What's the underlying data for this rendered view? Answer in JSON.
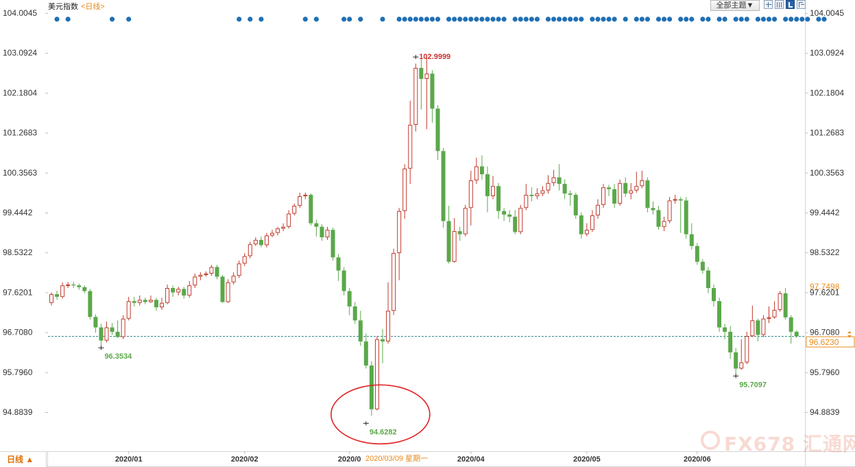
{
  "header": {
    "instrument": "美元指数",
    "period": "<日线>",
    "theme_button": "全部主题▼"
  },
  "toolbar_icons": [
    "grid-icon",
    "split-view-icon",
    "panel-toggle-icon",
    "export-icon"
  ],
  "period_tab": "日线 ▲",
  "cursor_date": "2020/03/09 星期一",
  "watermark": "FX678 汇通网",
  "colors": {
    "up": "#c0392b",
    "down": "#5aa84a",
    "marker_dot": "#1f6fb5",
    "current_line": "#2e8b8b",
    "annotation_orange": "#e88a1a",
    "highlight_circle": "#e02020"
  },
  "chart_data": {
    "type": "candlestick",
    "y_ticks": [
      "104.0045",
      "103.0924",
      "102.1804",
      "101.2683",
      "100.3563",
      "99.4442",
      "98.5322",
      "97.6201",
      "96.7080",
      "95.7960",
      "94.8839"
    ],
    "ylim": [
      94.45,
      104.0045
    ],
    "x_ticks": [
      {
        "label": "2020/01",
        "index": 14
      },
      {
        "label": "2020/02",
        "index": 35
      },
      {
        "label": "2020/0",
        "index": 54
      },
      {
        "label": "2020/04",
        "index": 76
      },
      {
        "label": "2020/05",
        "index": 97
      },
      {
        "label": "2020/06",
        "index": 117
      }
    ],
    "annotations": [
      {
        "label": "96.3534",
        "value": 96.3534,
        "index": 9,
        "color": "#5aa84a",
        "position": "below"
      },
      {
        "label": "102.9999",
        "value": 102.9999,
        "index": 66,
        "color": "#d03030",
        "position": "above"
      },
      {
        "label": "94.6282",
        "value": 94.6282,
        "index": 57,
        "color": "#5aa84a",
        "position": "below"
      },
      {
        "label": "95.7097",
        "value": 95.7097,
        "index": 124,
        "color": "#5aa84a",
        "position": "below"
      }
    ],
    "price_labels": [
      {
        "label": "97.7498",
        "value": 97.7498
      },
      {
        "label": "96.6230",
        "value": 96.623
      }
    ],
    "current_value": 96.623,
    "highlight_index": 57,
    "candles": [
      [
        97.38,
        97.58,
        97.32,
        97.62
      ],
      [
        97.58,
        97.52,
        97.45,
        97.66
      ],
      [
        97.52,
        97.78,
        97.48,
        97.85
      ],
      [
        97.78,
        97.8,
        97.72,
        97.86
      ],
      [
        97.8,
        97.78,
        97.72,
        97.86
      ],
      [
        97.78,
        97.74,
        97.68,
        97.82
      ],
      [
        97.74,
        97.65,
        97.6,
        97.78
      ],
      [
        97.65,
        97.06,
        97.0,
        97.7
      ],
      [
        97.06,
        96.82,
        96.7,
        97.12
      ],
      [
        96.82,
        96.52,
        96.35,
        96.9
      ],
      [
        96.52,
        96.82,
        96.48,
        96.95
      ],
      [
        96.82,
        96.72,
        96.65,
        96.92
      ],
      [
        96.72,
        96.6,
        96.58,
        96.98
      ],
      [
        96.6,
        97.02,
        96.55,
        97.1
      ],
      [
        97.02,
        97.42,
        96.98,
        97.52
      ],
      [
        97.42,
        97.38,
        97.3,
        97.52
      ],
      [
        97.38,
        97.45,
        97.32,
        97.55
      ],
      [
        97.45,
        97.4,
        97.35,
        97.5
      ],
      [
        97.4,
        97.45,
        97.38,
        97.55
      ],
      [
        97.45,
        97.28,
        97.2,
        97.5
      ],
      [
        97.28,
        97.38,
        97.22,
        97.5
      ],
      [
        97.38,
        97.72,
        97.35,
        97.8
      ],
      [
        97.72,
        97.62,
        97.52,
        97.78
      ],
      [
        97.62,
        97.7,
        97.55,
        97.75
      ],
      [
        97.7,
        97.55,
        97.48,
        97.75
      ],
      [
        97.55,
        97.78,
        97.5,
        97.88
      ],
      [
        97.78,
        97.98,
        97.72,
        98.05
      ],
      [
        97.98,
        98.02,
        97.9,
        98.08
      ],
      [
        98.02,
        98.05,
        97.98,
        98.1
      ],
      [
        98.05,
        98.2,
        98.0,
        98.25
      ],
      [
        98.2,
        97.98,
        97.92,
        98.25
      ],
      [
        97.98,
        97.4,
        97.38,
        98.02
      ],
      [
        97.4,
        97.85,
        97.38,
        97.92
      ],
      [
        97.85,
        98.0,
        97.8,
        98.08
      ],
      [
        98.0,
        98.28,
        97.95,
        98.35
      ],
      [
        98.28,
        98.45,
        98.22,
        98.52
      ],
      [
        98.45,
        98.72,
        98.4,
        98.78
      ],
      [
        98.72,
        98.82,
        98.68,
        98.88
      ],
      [
        98.82,
        98.7,
        98.65,
        98.9
      ],
      [
        98.7,
        98.92,
        98.65,
        98.98
      ],
      [
        98.92,
        98.98,
        98.88,
        99.05
      ],
      [
        98.98,
        99.08,
        98.92,
        99.12
      ],
      [
        99.08,
        99.12,
        99.02,
        99.2
      ],
      [
        99.12,
        99.42,
        99.08,
        99.5
      ],
      [
        99.42,
        99.6,
        99.38,
        99.65
      ],
      [
        99.6,
        99.82,
        99.55,
        99.9
      ],
      [
        99.82,
        99.85,
        99.75,
        99.9
      ],
      [
        99.85,
        99.2,
        99.15,
        99.88
      ],
      [
        99.2,
        99.12,
        98.9,
        99.28
      ],
      [
        99.12,
        98.88,
        98.8,
        99.18
      ],
      [
        98.88,
        99.05,
        98.82,
        99.12
      ],
      [
        99.05,
        98.42,
        98.35,
        99.1
      ],
      [
        98.42,
        98.12,
        97.88,
        98.5
      ],
      [
        98.12,
        97.65,
        97.55,
        98.2
      ],
      [
        97.65,
        97.3,
        97.1,
        97.72
      ],
      [
        97.3,
        96.98,
        96.9,
        97.4
      ],
      [
        96.98,
        96.5,
        96.4,
        97.2
      ],
      [
        96.5,
        95.95,
        95.88,
        96.68
      ],
      [
        95.95,
        94.95,
        94.8,
        96.05
      ],
      [
        94.95,
        96.55,
        94.92,
        96.62
      ],
      [
        96.55,
        96.5,
        96.0,
        96.78
      ],
      [
        96.5,
        97.2,
        96.45,
        97.85
      ],
      [
        97.2,
        98.52,
        97.1,
        98.62
      ],
      [
        98.52,
        99.48,
        97.9,
        99.55
      ],
      [
        99.48,
        100.45,
        99.3,
        100.55
      ],
      [
        100.45,
        101.45,
        100.1,
        102.0
      ],
      [
        101.45,
        102.75,
        101.3,
        102.85
      ],
      [
        102.75,
        102.5,
        101.8,
        102.95
      ],
      [
        102.5,
        102.62,
        101.35,
        103.0
      ],
      [
        102.62,
        101.82,
        101.5,
        102.7
      ],
      [
        101.82,
        100.85,
        100.65,
        101.9
      ],
      [
        100.85,
        99.25,
        99.1,
        100.92
      ],
      [
        99.25,
        98.32,
        98.28,
        99.6
      ],
      [
        98.32,
        99.02,
        98.3,
        99.32
      ],
      [
        99.02,
        98.95,
        98.8,
        99.12
      ],
      [
        98.95,
        99.55,
        98.9,
        99.62
      ],
      [
        99.55,
        100.18,
        99.15,
        100.4
      ],
      [
        100.18,
        100.5,
        100.1,
        100.7
      ],
      [
        100.5,
        100.32,
        100.2,
        100.75
      ],
      [
        100.32,
        99.82,
        99.45,
        100.5
      ],
      [
        99.82,
        100.05,
        99.75,
        100.28
      ],
      [
        100.05,
        99.48,
        99.3,
        100.12
      ],
      [
        99.48,
        99.4,
        99.25,
        99.55
      ],
      [
        99.4,
        99.35,
        99.22,
        99.5
      ],
      [
        99.35,
        99.0,
        98.95,
        99.5
      ],
      [
        99.0,
        99.55,
        98.95,
        99.62
      ],
      [
        99.55,
        99.85,
        99.5,
        100.1
      ],
      [
        99.85,
        99.82,
        99.7,
        100.02
      ],
      [
        99.82,
        99.88,
        99.75,
        100.0
      ],
      [
        99.88,
        99.95,
        99.82,
        100.05
      ],
      [
        99.95,
        100.12,
        99.88,
        100.3
      ],
      [
        100.12,
        100.25,
        100.05,
        100.42
      ],
      [
        100.25,
        100.1,
        99.95,
        100.55
      ],
      [
        100.1,
        99.88,
        99.75,
        100.2
      ],
      [
        99.88,
        99.85,
        99.6,
        99.95
      ],
      [
        99.85,
        99.38,
        99.3,
        99.9
      ],
      [
        99.38,
        98.95,
        98.85,
        99.45
      ],
      [
        98.95,
        99.05,
        98.9,
        99.2
      ],
      [
        99.05,
        99.38,
        99.0,
        99.5
      ],
      [
        99.38,
        99.62,
        99.3,
        99.75
      ],
      [
        99.62,
        100.02,
        99.55,
        100.1
      ],
      [
        100.02,
        99.98,
        99.82,
        100.08
      ],
      [
        99.98,
        99.65,
        99.55,
        100.1
      ],
      [
        99.65,
        100.12,
        99.6,
        100.2
      ],
      [
        100.12,
        99.88,
        99.8,
        100.25
      ],
      [
        99.88,
        99.95,
        99.75,
        100.12
      ],
      [
        99.95,
        100.05,
        99.9,
        100.38
      ],
      [
        100.05,
        100.18,
        100.0,
        100.4
      ],
      [
        100.18,
        99.55,
        99.45,
        100.25
      ],
      [
        99.55,
        99.5,
        99.4,
        99.7
      ],
      [
        99.5,
        99.12,
        99.05,
        99.6
      ],
      [
        99.12,
        99.25,
        99.02,
        99.35
      ],
      [
        99.25,
        99.72,
        99.2,
        99.8
      ],
      [
        99.72,
        99.75,
        99.65,
        99.85
      ],
      [
        99.75,
        99.72,
        98.98,
        99.8
      ],
      [
        99.72,
        98.95,
        98.85,
        99.8
      ],
      [
        98.95,
        98.68,
        98.6,
        99.2
      ],
      [
        98.68,
        98.32,
        98.25,
        98.75
      ],
      [
        98.32,
        98.12,
        98.05,
        98.38
      ],
      [
        98.12,
        97.72,
        97.6,
        98.2
      ],
      [
        97.72,
        97.42,
        97.3,
        97.8
      ],
      [
        97.42,
        96.82,
        96.72,
        97.5
      ],
      [
        96.82,
        96.72,
        96.55,
        96.9
      ],
      [
        96.72,
        96.25,
        96.1,
        96.85
      ],
      [
        96.25,
        95.88,
        95.72,
        96.35
      ],
      [
        95.88,
        96.02,
        95.85,
        96.55
      ],
      [
        96.02,
        96.62,
        95.98,
        96.72
      ],
      [
        96.62,
        96.98,
        96.6,
        97.32
      ],
      [
        96.98,
        96.65,
        96.5,
        97.02
      ],
      [
        96.65,
        97.02,
        96.6,
        97.1
      ],
      [
        97.02,
        97.05,
        96.92,
        97.3
      ],
      [
        97.05,
        97.22,
        97.02,
        97.42
      ],
      [
        97.22,
        97.6,
        97.18,
        97.65
      ],
      [
        97.6,
        97.05,
        97.0,
        97.72
      ],
      [
        97.05,
        96.72,
        96.45,
        97.1
      ],
      [
        96.72,
        96.62,
        96.58,
        96.75
      ]
    ]
  }
}
